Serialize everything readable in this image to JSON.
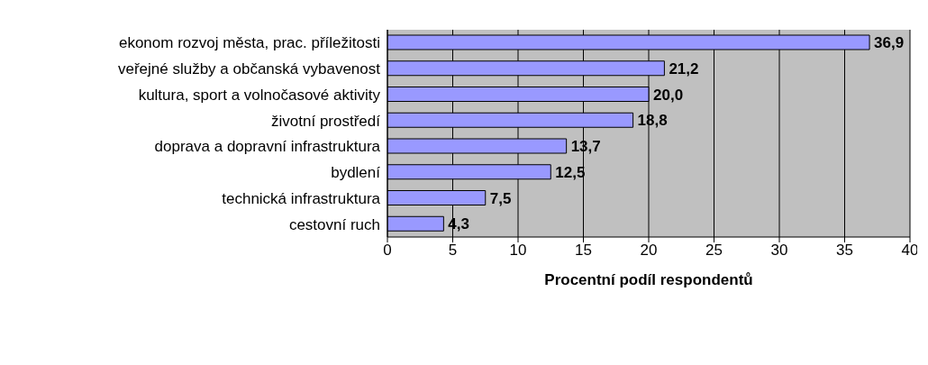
{
  "chart_data": {
    "type": "bar",
    "orientation": "horizontal",
    "categories": [
      "ekonom rozvoj města, prac. příležitosti",
      "veřejné služby a občanská vybavenost",
      "kultura, sport a volnočasové aktivity",
      "životní prostředí",
      "doprava a dopravní infrastruktura",
      "bydlení",
      "technická infrastruktura",
      "cestovní ruch"
    ],
    "values": [
      36.9,
      21.2,
      20.0,
      18.8,
      13.7,
      12.5,
      7.5,
      4.3
    ],
    "value_labels": [
      "36,9",
      "21,2",
      "20,0",
      "18,8",
      "13,7",
      "12,5",
      "7,5",
      "4,3"
    ],
    "color": "#9999ff",
    "xlim": [
      0,
      40
    ],
    "xticks": [
      0,
      5,
      10,
      15,
      20,
      25,
      30,
      35,
      40
    ],
    "xlabel": "Procentní podíl respondentů",
    "grid": "x",
    "legend": false
  }
}
